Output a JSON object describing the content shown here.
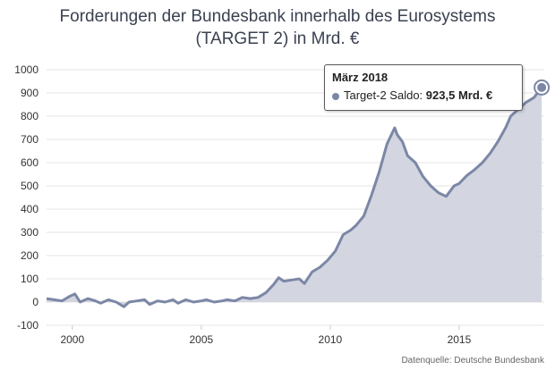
{
  "chart_data": {
    "type": "area",
    "title_line1": "Forderungen der Bundesbank innerhalb des Eurosystems",
    "title_line2": "(TARGET 2) in Mrd. €",
    "ylim": [
      -100,
      1000
    ],
    "yticks": [
      -100,
      0,
      100,
      200,
      300,
      400,
      500,
      600,
      700,
      800,
      900,
      1000
    ],
    "xlim": [
      1999.0,
      2018.3
    ],
    "xticks": [
      2000,
      2005,
      2010,
      2015
    ],
    "grid": true,
    "colors": {
      "line": "#7c87a6",
      "fill": "#cbcedb",
      "grid": "#e6e6e6"
    },
    "series": [
      {
        "name": "Target-2 Saldo",
        "x": [
          1999.0,
          1999.3,
          1999.6,
          1999.9,
          2000.1,
          2000.3,
          2000.6,
          2000.9,
          2001.1,
          2001.4,
          2001.7,
          2002.0,
          2002.2,
          2002.5,
          2002.8,
          2003.0,
          2003.3,
          2003.6,
          2003.9,
          2004.1,
          2004.4,
          2004.7,
          2005.0,
          2005.2,
          2005.5,
          2005.8,
          2006.0,
          2006.3,
          2006.6,
          2006.9,
          2007.2,
          2007.5,
          2007.8,
          2008.0,
          2008.2,
          2008.5,
          2008.8,
          2009.0,
          2009.3,
          2009.6,
          2009.9,
          2010.2,
          2010.5,
          2010.8,
          2011.0,
          2011.3,
          2011.6,
          2011.9,
          2012.2,
          2012.5,
          2012.6,
          2012.8,
          2013.0,
          2013.3,
          2013.6,
          2013.9,
          2014.2,
          2014.5,
          2014.8,
          2015.0,
          2015.3,
          2015.6,
          2015.9,
          2016.2,
          2016.5,
          2016.8,
          2017.0,
          2017.3,
          2017.6,
          2017.9,
          2018.2
        ],
        "values": [
          15,
          10,
          5,
          25,
          35,
          0,
          15,
          5,
          -5,
          10,
          0,
          -20,
          0,
          5,
          10,
          -10,
          5,
          0,
          10,
          -5,
          10,
          0,
          5,
          10,
          0,
          5,
          10,
          5,
          20,
          15,
          20,
          40,
          75,
          105,
          90,
          95,
          100,
          80,
          130,
          150,
          180,
          220,
          290,
          310,
          330,
          370,
          460,
          560,
          680,
          750,
          720,
          690,
          630,
          600,
          540,
          500,
          470,
          455,
          500,
          510,
          545,
          570,
          600,
          640,
          690,
          750,
          800,
          830,
          860,
          880,
          923.5
        ]
      }
    ],
    "tooltip": {
      "date": "März 2018",
      "series_label": "Target-2 Saldo:",
      "value_text": "923,5 Mrd. €"
    },
    "source": "Datenquelle: Deutsche Bundesbank"
  }
}
